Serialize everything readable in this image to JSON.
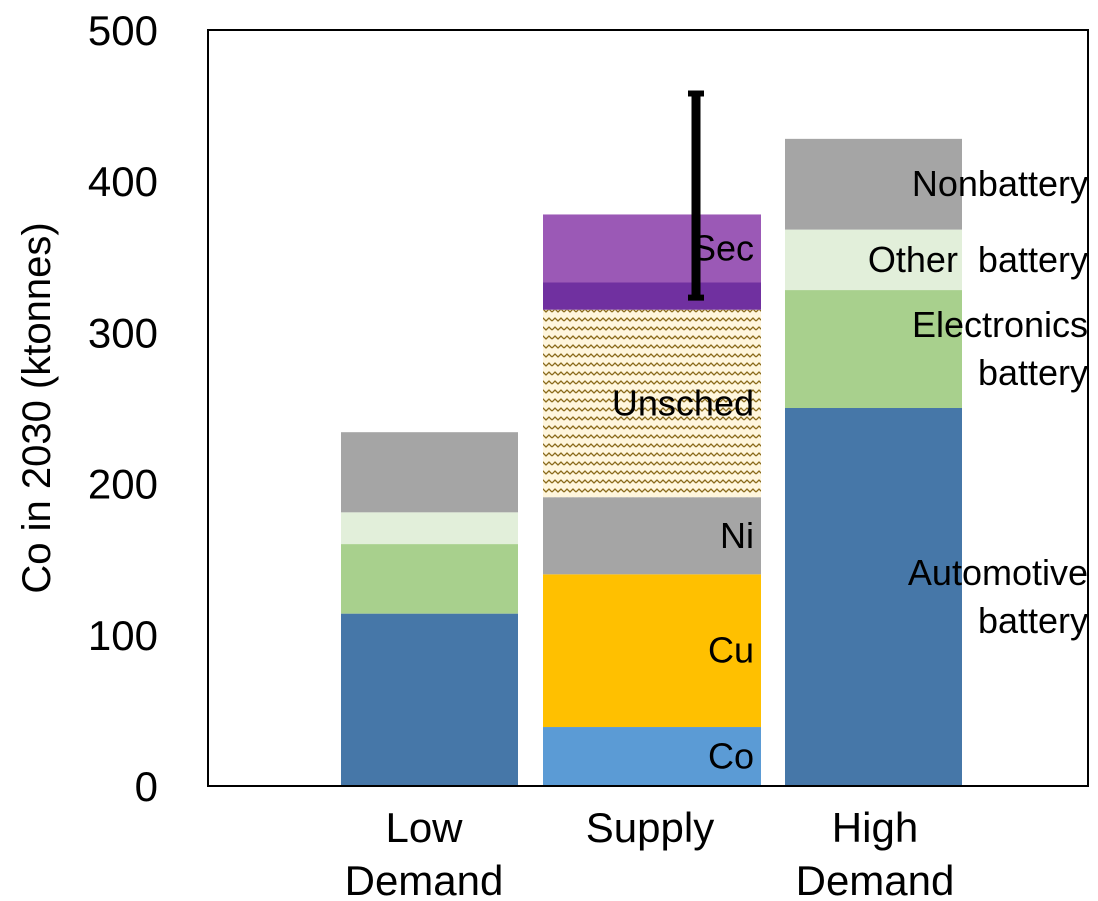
{
  "chart_data": {
    "type": "bar",
    "stacked": true,
    "title": "",
    "ylabel": "Co in 2030 (ktonnes)",
    "ylim": [
      0,
      500
    ],
    "yticks": [
      0,
      100,
      200,
      300,
      400,
      500
    ],
    "grid": false,
    "legend": "none",
    "categories": [
      {
        "line1": "Low",
        "line2": "Demand"
      },
      {
        "line1": "Supply",
        "line2": ""
      },
      {
        "line1": "High",
        "line2": "Demand"
      }
    ],
    "stacks": [
      {
        "category": "Low Demand",
        "segments": [
          {
            "key": "automotive",
            "value": 114,
            "color": "#4677a8"
          },
          {
            "key": "electronics",
            "value": 46,
            "color": "#a8d08d"
          },
          {
            "key": "other",
            "value": 21,
            "color": "#e2efda"
          },
          {
            "key": "nonbattery",
            "value": 53,
            "color": "#a5a5a5"
          }
        ]
      },
      {
        "category": "Supply",
        "segments": [
          {
            "key": "co",
            "label": "Co",
            "value": 39,
            "color": "#5b9bd5"
          },
          {
            "key": "cu",
            "label": "Cu",
            "value": 101,
            "color": "#ffc000"
          },
          {
            "key": "ni",
            "label": "Ni",
            "value": 51,
            "color": "#a5a5a5"
          },
          {
            "key": "unsched",
            "label": "Unsched",
            "value": 124,
            "color": "#fff2cc",
            "pattern": true
          },
          {
            "key": "sec_dark",
            "label": "",
            "value": 18,
            "color": "#7030a0"
          },
          {
            "key": "sec",
            "label": "Sec",
            "value": 45,
            "color": "#9b59b6"
          }
        ],
        "error_bar": {
          "low": 323,
          "high": 458
        }
      },
      {
        "category": "High Demand",
        "segments": [
          {
            "key": "automotive",
            "label": [
              "Automotive",
              "battery"
            ],
            "value": 250,
            "color": "#4677a8"
          },
          {
            "key": "electronics",
            "label": [
              "Electronics",
              "battery"
            ],
            "value": 78,
            "color": "#a8d08d"
          },
          {
            "key": "other",
            "label": [
              "Other  battery"
            ],
            "value": 40,
            "color": "#e2efda"
          },
          {
            "key": "nonbattery",
            "label": [
              "Nonbattery"
            ],
            "value": 60,
            "color": "#a5a5a5"
          }
        ]
      }
    ]
  }
}
